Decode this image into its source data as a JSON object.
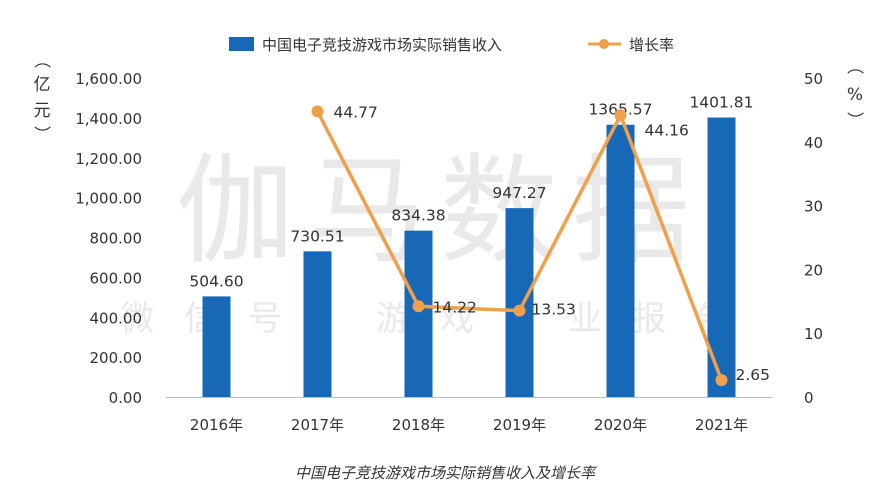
{
  "chart_data": {
    "type": "bar+line",
    "categories": [
      "2016年",
      "2017年",
      "2018年",
      "2019年",
      "2020年",
      "2021年"
    ],
    "series": [
      {
        "name": "中国电子竞技游戏市场实际销售收入",
        "type": "bar",
        "axis": "left",
        "values": [
          504.6,
          730.51,
          834.38,
          947.27,
          1365.57,
          1401.81
        ],
        "value_labels": [
          "504.60",
          "730.51",
          "834.38",
          "947.27",
          "1365.57",
          "1401.81"
        ],
        "color": "#1769b8"
      },
      {
        "name": "增长率",
        "type": "line",
        "axis": "right",
        "values": [
          null,
          44.77,
          14.22,
          13.53,
          44.16,
          2.65
        ],
        "value_labels": [
          "",
          "44.77",
          "14.22",
          "13.53",
          "44.16",
          "2.65"
        ],
        "color": "#f0a04b"
      }
    ],
    "y_left": {
      "unit_label": [
        "（",
        "亿",
        "元",
        "）"
      ],
      "range": [
        0,
        1600
      ],
      "ticks": [
        0,
        200,
        400,
        600,
        800,
        1000,
        1200,
        1400,
        1600
      ],
      "tick_labels": [
        "0.00",
        "200.00",
        "400.00",
        "600.00",
        "800.00",
        "1,000.00",
        "1,200.00",
        "1,400.00",
        "1,600.00"
      ]
    },
    "y_right": {
      "unit_label": [
        "（",
        "%",
        "）"
      ],
      "range": [
        0,
        50
      ],
      "ticks": [
        0,
        10,
        20,
        30,
        40,
        50
      ],
      "tick_labels": [
        "0",
        "10",
        "20",
        "30",
        "40",
        "50"
      ]
    },
    "grid": false,
    "legend_position": "top-center"
  },
  "watermark": {
    "large": "伽马数据",
    "small": "微信号：游戏产业报告"
  },
  "caption": "中国电子竞技游戏市场实际销售收入及增长率"
}
